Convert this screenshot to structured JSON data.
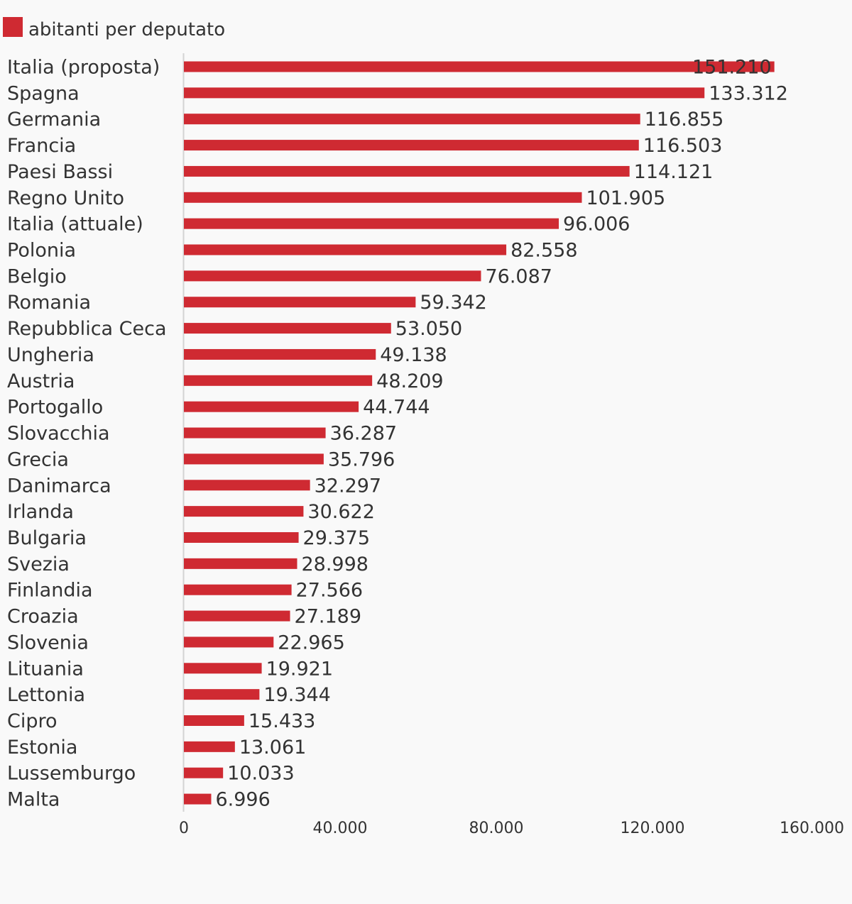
{
  "colors": {
    "bar": "#cf2a32",
    "text": "#333333",
    "axis": "#d4d4d4",
    "background": "#f9f9f9"
  },
  "chart_data": {
    "type": "bar",
    "orientation": "horizontal",
    "title": "",
    "xlabel": "",
    "ylabel": "",
    "legend": {
      "placement": "top-left",
      "entries": [
        "abitanti per deputato"
      ]
    },
    "grid": false,
    "xlim": [
      0,
      160000
    ],
    "ticks": [
      0,
      40000,
      80000,
      120000,
      160000
    ],
    "tick_labels": [
      "0",
      "40.000",
      "80.000",
      "120.000",
      "160.000"
    ],
    "categories": [
      "Italia (proposta)",
      "Spagna",
      "Germania",
      "Francia",
      "Paesi Bassi",
      "Regno Unito",
      "Italia (attuale)",
      "Polonia",
      "Belgio",
      "Romania",
      "Repubblica Ceca",
      "Ungheria",
      "Austria",
      "Portogallo",
      "Slovacchia",
      "Grecia",
      "Danimarca",
      "Irlanda",
      "Bulgaria",
      "Svezia",
      "Finlandia",
      "Croazia",
      "Slovenia",
      "Lituania",
      "Lettonia",
      "Cipro",
      "Estonia",
      "Lussemburgo",
      "Malta"
    ],
    "series": [
      {
        "name": "abitanti per deputato",
        "values": [
          151210,
          133312,
          116855,
          116503,
          114121,
          101905,
          96006,
          82558,
          76087,
          59342,
          53050,
          49138,
          48209,
          44744,
          36287,
          35796,
          32297,
          30622,
          29375,
          28998,
          27566,
          27189,
          22965,
          19921,
          19344,
          15433,
          13061,
          10033,
          6996
        ],
        "value_labels": [
          "151.210",
          "133.312",
          "116.855",
          "116.503",
          "114.121",
          "101.905",
          "96.006",
          "82.558",
          "76.087",
          "59.342",
          "53.050",
          "49.138",
          "48.209",
          "44.744",
          "36.287",
          "35.796",
          "32.297",
          "30.622",
          "29.375",
          "28.998",
          "27.566",
          "27.189",
          "22.965",
          "19.921",
          "19.344",
          "15.433",
          "13.061",
          "10.033",
          "6.996"
        ]
      }
    ]
  }
}
